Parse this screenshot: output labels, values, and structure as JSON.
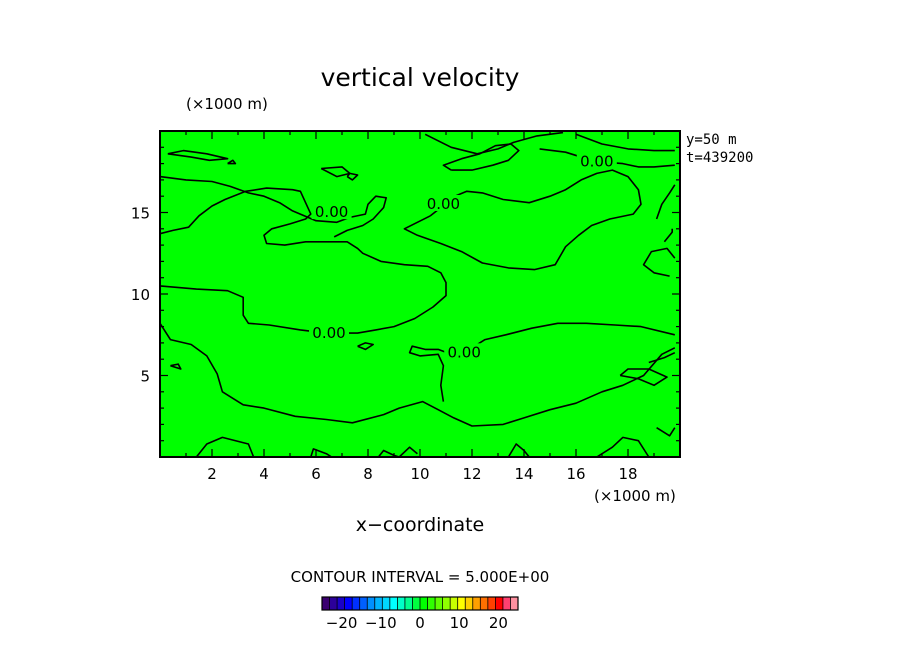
{
  "chart_data": {
    "type": "heatmap",
    "title": "vertical velocity",
    "xlabel": "x−coordinate",
    "x_unit": "(×1000 m)",
    "y_unit": "(×1000 m)",
    "xlim": [
      0,
      20
    ],
    "ylim": [
      0,
      20
    ],
    "x_ticks": [
      "2",
      "4",
      "6",
      "8",
      "10",
      "12",
      "14",
      "16",
      "18"
    ],
    "y_ticks": [
      "5",
      "10",
      "15"
    ],
    "annotations": [
      "y=50  m",
      "t=439200"
    ],
    "contour_interval_text": "CONTOUR INTERVAL = 5.000E+00",
    "contour_interval": 5.0,
    "contour_labels": [
      {
        "text": "0.00",
        "x": 6.6,
        "y": 14.9
      },
      {
        "text": "0.00",
        "x": 10.9,
        "y": 15.4
      },
      {
        "text": "0.00",
        "x": 16.8,
        "y": 18.0
      },
      {
        "text": "0.00",
        "x": 6.5,
        "y": 7.5
      },
      {
        "text": "0.00",
        "x": 11.7,
        "y": 6.3
      }
    ],
    "field_fill_color": "#00ff00",
    "contour_lines": [
      [
        [
          0.0,
          8.2
        ],
        [
          0.4,
          7.2
        ],
        [
          1.2,
          6.9
        ],
        [
          1.8,
          6.2
        ],
        [
          2.2,
          5.1
        ],
        [
          2.4,
          4.0
        ],
        [
          3.2,
          3.2
        ],
        [
          4.0,
          3.0
        ],
        [
          5.2,
          2.5
        ],
        [
          6.4,
          2.3
        ],
        [
          7.4,
          2.1
        ],
        [
          8.6,
          2.6
        ],
        [
          9.2,
          3.0
        ],
        [
          10.1,
          3.4
        ],
        [
          10.7,
          2.9
        ],
        [
          11.3,
          2.4
        ],
        [
          12.0,
          1.9
        ],
        [
          13.2,
          2.0
        ],
        [
          14.0,
          2.4
        ],
        [
          15.0,
          2.9
        ],
        [
          16.0,
          3.3
        ],
        [
          17.0,
          4.0
        ],
        [
          17.8,
          4.4
        ],
        [
          18.6,
          5.0
        ],
        [
          19.3,
          6.3
        ],
        [
          19.8,
          6.7
        ]
      ],
      [
        [
          19.8,
          7.5
        ],
        [
          18.5,
          8.0
        ],
        [
          17.5,
          8.1
        ],
        [
          16.4,
          8.2
        ],
        [
          15.3,
          8.2
        ],
        [
          14.3,
          7.9
        ],
        [
          13.3,
          7.5
        ],
        [
          12.5,
          7.2
        ],
        [
          12.0,
          6.7
        ],
        [
          11.6,
          6.2
        ],
        [
          11.2,
          6.3
        ],
        [
          10.7,
          6.6
        ],
        [
          10.2,
          6.6
        ],
        [
          9.7,
          6.8
        ],
        [
          9.6,
          6.4
        ],
        [
          10.0,
          6.2
        ],
        [
          10.7,
          6.3
        ],
        [
          10.9,
          5.6
        ],
        [
          10.8,
          4.4
        ],
        [
          10.9,
          3.4
        ]
      ],
      [
        [
          0.0,
          10.5
        ],
        [
          1.4,
          10.3
        ],
        [
          2.6,
          10.2
        ],
        [
          3.2,
          9.8
        ],
        [
          3.2,
          8.7
        ],
        [
          3.4,
          8.2
        ],
        [
          4.2,
          8.1
        ],
        [
          5.4,
          7.8
        ],
        [
          6.4,
          7.6
        ],
        [
          7.6,
          7.6
        ],
        [
          8.3,
          7.8
        ],
        [
          9.0,
          8.0
        ],
        [
          9.8,
          8.5
        ],
        [
          10.5,
          9.2
        ],
        [
          11.0,
          9.9
        ],
        [
          11.0,
          10.7
        ],
        [
          10.8,
          11.3
        ],
        [
          10.3,
          11.7
        ],
        [
          9.4,
          11.8
        ],
        [
          8.5,
          12.0
        ],
        [
          7.8,
          12.5
        ],
        [
          7.6,
          12.8
        ],
        [
          7.2,
          13.2
        ],
        [
          6.4,
          13.2
        ],
        [
          5.6,
          13.2
        ],
        [
          4.8,
          13.0
        ],
        [
          4.1,
          13.1
        ],
        [
          4.0,
          13.6
        ],
        [
          4.3,
          14.0
        ],
        [
          5.0,
          14.3
        ],
        [
          5.6,
          14.6
        ],
        [
          5.8,
          14.9
        ],
        [
          5.6,
          15.6
        ],
        [
          5.4,
          16.3
        ],
        [
          5.1,
          16.4
        ],
        [
          4.1,
          16.5
        ],
        [
          3.3,
          16.3
        ],
        [
          2.5,
          15.8
        ],
        [
          2.0,
          15.4
        ],
        [
          1.5,
          14.8
        ],
        [
          1.1,
          14.1
        ],
        [
          0.5,
          13.9
        ],
        [
          0.0,
          13.7
        ]
      ],
      [
        [
          0.0,
          17.2
        ],
        [
          1.0,
          17.0
        ],
        [
          2.0,
          16.9
        ],
        [
          2.7,
          16.6
        ],
        [
          3.4,
          16.2
        ],
        [
          4.0,
          16.0
        ],
        [
          4.6,
          15.6
        ],
        [
          5.1,
          15.1
        ],
        [
          6.0,
          14.5
        ],
        [
          6.8,
          14.4
        ],
        [
          7.3,
          14.7
        ],
        [
          7.9,
          14.9
        ],
        [
          8.0,
          15.5
        ],
        [
          8.3,
          16.0
        ],
        [
          8.7,
          15.9
        ],
        [
          8.6,
          15.3
        ],
        [
          8.2,
          14.6
        ],
        [
          7.8,
          14.2
        ],
        [
          7.2,
          13.9
        ],
        [
          6.7,
          13.5
        ]
      ],
      [
        [
          10.4,
          14.8
        ],
        [
          10.8,
          15.3
        ],
        [
          11.2,
          15.9
        ],
        [
          11.8,
          16.3
        ],
        [
          12.4,
          16.2
        ],
        [
          13.2,
          15.8
        ],
        [
          14.2,
          15.6
        ],
        [
          15.0,
          16.0
        ],
        [
          15.6,
          16.4
        ],
        [
          16.2,
          17.0
        ],
        [
          16.8,
          17.4
        ],
        [
          17.4,
          17.6
        ],
        [
          18.0,
          17.2
        ],
        [
          18.4,
          16.4
        ],
        [
          18.5,
          15.5
        ],
        [
          18.2,
          14.9
        ],
        [
          17.3,
          14.6
        ],
        [
          16.6,
          14.2
        ],
        [
          16.1,
          13.6
        ],
        [
          15.6,
          12.9
        ],
        [
          15.2,
          11.8
        ],
        [
          14.4,
          11.5
        ],
        [
          13.4,
          11.6
        ],
        [
          12.4,
          11.9
        ],
        [
          11.6,
          12.6
        ],
        [
          10.8,
          13.1
        ],
        [
          9.9,
          13.6
        ],
        [
          9.4,
          14.0
        ],
        [
          9.9,
          14.4
        ],
        [
          10.4,
          14.8
        ]
      ],
      [
        [
          11.2,
          17.6
        ],
        [
          12.0,
          17.6
        ],
        [
          12.8,
          17.9
        ],
        [
          13.4,
          18.2
        ],
        [
          13.8,
          18.8
        ],
        [
          13.5,
          19.2
        ],
        [
          12.9,
          19.1
        ],
        [
          12.3,
          18.6
        ],
        [
          11.6,
          18.3
        ],
        [
          10.9,
          17.9
        ],
        [
          11.2,
          17.6
        ]
      ],
      [
        [
          0.3,
          18.6
        ],
        [
          1.2,
          18.4
        ],
        [
          1.9,
          18.2
        ],
        [
          2.6,
          18.3
        ],
        [
          1.8,
          18.6
        ],
        [
          0.9,
          18.8
        ],
        [
          0.3,
          18.6
        ]
      ],
      [
        [
          10.2,
          19.8
        ],
        [
          11.2,
          19.0
        ],
        [
          12.2,
          18.6
        ],
        [
          13.0,
          18.9
        ],
        [
          13.6,
          19.3
        ],
        [
          14.5,
          19.7
        ],
        [
          15.5,
          19.9
        ]
      ],
      [
        [
          14.6,
          18.9
        ],
        [
          15.6,
          18.7
        ],
        [
          16.4,
          18.3
        ],
        [
          17.0,
          18.1
        ],
        [
          17.8,
          18.0
        ],
        [
          18.4,
          17.8
        ],
        [
          19.0,
          17.8
        ],
        [
          19.8,
          17.9
        ]
      ],
      [
        [
          16.0,
          19.8
        ],
        [
          17.0,
          19.2
        ],
        [
          18.0,
          18.9
        ],
        [
          19.0,
          18.8
        ],
        [
          19.8,
          18.8
        ]
      ],
      [
        [
          6.2,
          17.7
        ],
        [
          6.8,
          17.2
        ],
        [
          7.3,
          17.4
        ],
        [
          7.0,
          17.8
        ],
        [
          6.2,
          17.7
        ]
      ],
      [
        [
          7.2,
          17.2
        ],
        [
          7.4,
          17.0
        ],
        [
          7.6,
          17.3
        ],
        [
          7.3,
          17.4
        ],
        [
          7.2,
          17.2
        ]
      ],
      [
        [
          2.6,
          18.0
        ],
        [
          2.9,
          18.0
        ],
        [
          2.8,
          18.2
        ],
        [
          2.6,
          18.0
        ]
      ],
      [
        [
          19.1,
          14.6
        ],
        [
          19.3,
          15.5
        ],
        [
          19.6,
          16.2
        ],
        [
          19.8,
          16.7
        ]
      ],
      [
        [
          19.4,
          13.2
        ],
        [
          19.7,
          13.8
        ],
        [
          19.7,
          14.0
        ]
      ],
      [
        [
          19.6,
          11.1
        ],
        [
          19.0,
          11.3
        ],
        [
          18.6,
          11.8
        ],
        [
          18.9,
          12.6
        ],
        [
          19.5,
          12.8
        ],
        [
          19.8,
          12.2
        ]
      ],
      [
        [
          17.7,
          5.0
        ],
        [
          18.4,
          4.8
        ],
        [
          19.0,
          4.4
        ],
        [
          19.5,
          4.9
        ],
        [
          18.8,
          5.4
        ],
        [
          18.0,
          5.4
        ],
        [
          17.7,
          5.0
        ]
      ],
      [
        [
          18.8,
          5.8
        ],
        [
          19.4,
          6.1
        ],
        [
          19.8,
          6.4
        ]
      ],
      [
        [
          0.4,
          5.6
        ],
        [
          0.8,
          5.4
        ],
        [
          0.7,
          5.7
        ],
        [
          0.4,
          5.6
        ]
      ],
      [
        [
          7.6,
          6.8
        ],
        [
          7.9,
          6.6
        ],
        [
          8.2,
          6.9
        ],
        [
          7.9,
          7.0
        ],
        [
          7.6,
          6.8
        ]
      ],
      [
        [
          1.4,
          0.0
        ],
        [
          1.8,
          0.8
        ],
        [
          2.4,
          1.2
        ],
        [
          3.4,
          0.8
        ],
        [
          3.6,
          0.0
        ]
      ],
      [
        [
          5.8,
          0.0
        ],
        [
          5.9,
          0.5
        ],
        [
          6.4,
          0.2
        ],
        [
          6.6,
          0.0
        ]
      ],
      [
        [
          8.4,
          0.0
        ],
        [
          8.6,
          0.4
        ],
        [
          9.0,
          0.1
        ],
        [
          9.2,
          0.0
        ]
      ],
      [
        [
          9.2,
          0.0
        ],
        [
          9.6,
          0.6
        ],
        [
          9.9,
          0.2
        ]
      ],
      [
        [
          13.4,
          0.0
        ],
        [
          13.7,
          0.8
        ],
        [
          14.0,
          0.4
        ],
        [
          14.2,
          0.0
        ]
      ],
      [
        [
          16.8,
          0.0
        ],
        [
          17.4,
          0.6
        ],
        [
          17.8,
          1.2
        ],
        [
          18.4,
          1.0
        ],
        [
          18.8,
          0.0
        ]
      ],
      [
        [
          19.1,
          1.8
        ],
        [
          19.6,
          1.3
        ],
        [
          19.8,
          1.8
        ]
      ]
    ],
    "colorbar": {
      "ticks": [
        -20,
        -10,
        0,
        10,
        20
      ],
      "tick_labels": [
        "−20",
        "−10",
        "0",
        "10",
        "20"
      ],
      "min": -25,
      "max": 25,
      "colors": [
        "#3b0070",
        "#2c009a",
        "#1a00c8",
        "#0000ff",
        "#0030ff",
        "#0060ff",
        "#0090ff",
        "#00b4ff",
        "#00d8ff",
        "#00ffff",
        "#00ffc8",
        "#00ff90",
        "#00ff40",
        "#00ff00",
        "#30ff00",
        "#60ff00",
        "#90ff00",
        "#c8ff00",
        "#ffff00",
        "#ffd000",
        "#ffa000",
        "#ff7000",
        "#ff4000",
        "#ff0000",
        "#ff4070",
        "#ff90a0"
      ]
    }
  }
}
